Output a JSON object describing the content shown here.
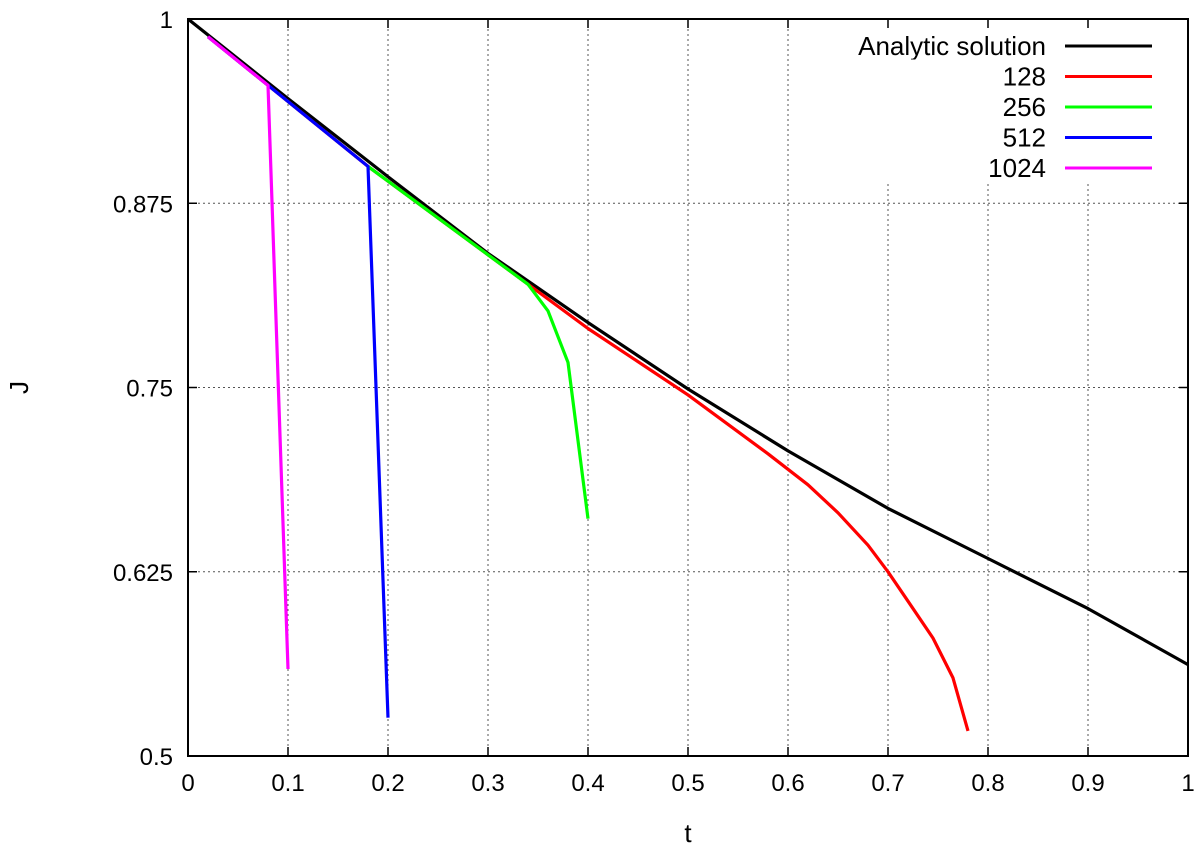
{
  "chart_data": {
    "type": "line",
    "title": "",
    "xlabel": "t",
    "ylabel": "J",
    "xlim": [
      0,
      1
    ],
    "ylim": [
      0.5,
      1
    ],
    "xticks": [
      {
        "value": 0,
        "label": "0"
      },
      {
        "value": 0.1,
        "label": "0.1"
      },
      {
        "value": 0.2,
        "label": "0.2"
      },
      {
        "value": 0.3,
        "label": "0.3"
      },
      {
        "value": 0.4,
        "label": "0.4"
      },
      {
        "value": 0.5,
        "label": "0.5"
      },
      {
        "value": 0.6,
        "label": "0.6"
      },
      {
        "value": 0.7,
        "label": "0.7"
      },
      {
        "value": 0.8,
        "label": "0.8"
      },
      {
        "value": 0.9,
        "label": "0.9"
      },
      {
        "value": 1,
        "label": "1"
      }
    ],
    "yticks": [
      {
        "value": 0.5,
        "label": "0.5"
      },
      {
        "value": 0.625,
        "label": "0.625"
      },
      {
        "value": 0.75,
        "label": "0.75"
      },
      {
        "value": 0.875,
        "label": "0.875"
      },
      {
        "value": 1,
        "label": "1"
      }
    ],
    "grid": true,
    "legend_position": "top-right",
    "series": [
      {
        "name": "Analytic solution",
        "color": "#000000",
        "x": [
          0,
          0.1,
          0.2,
          0.3,
          0.4,
          0.5,
          0.6,
          0.7,
          0.8,
          0.9,
          1.0
        ],
        "y": [
          1.0,
          0.946,
          0.893,
          0.841,
          0.794,
          0.749,
          0.707,
          0.668,
          0.634,
          0.6,
          0.562
        ]
      },
      {
        "name": "128",
        "color": "#ff0000",
        "x": [
          0.02,
          0.08,
          0.18,
          0.3,
          0.4,
          0.5,
          0.58,
          0.62,
          0.65,
          0.68,
          0.7,
          0.72,
          0.745,
          0.765,
          0.78
        ],
        "y": [
          0.988,
          0.955,
          0.9,
          0.84,
          0.79,
          0.745,
          0.705,
          0.684,
          0.665,
          0.643,
          0.625,
          0.605,
          0.58,
          0.553,
          0.517
        ]
      },
      {
        "name": "256",
        "color": "#00ff00",
        "x": [
          0.18,
          0.3,
          0.34,
          0.36,
          0.38,
          0.4
        ],
        "y": [
          0.9,
          0.84,
          0.82,
          0.802,
          0.767,
          0.661
        ]
      },
      {
        "name": "512",
        "color": "#0000ff",
        "x": [
          0.02,
          0.08,
          0.18,
          0.2
        ],
        "y": [
          0.988,
          0.955,
          0.9,
          0.526
        ]
      },
      {
        "name": "1024",
        "color": "#ff00ff",
        "x": [
          0.02,
          0.08,
          0.1
        ],
        "y": [
          0.988,
          0.955,
          0.559
        ]
      }
    ]
  }
}
